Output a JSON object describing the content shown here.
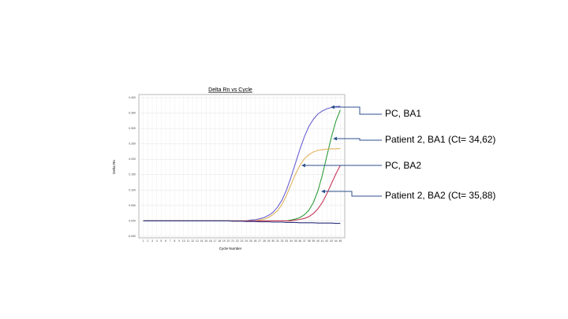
{
  "chart_data": {
    "type": "line",
    "title": "Delta Rn vs Cycle",
    "x_label": "Cycle Number",
    "y_label": "Delta Rn",
    "x": [
      1,
      2,
      3,
      4,
      5,
      6,
      7,
      8,
      9,
      10,
      11,
      12,
      13,
      14,
      15,
      16,
      17,
      18,
      19,
      20,
      21,
      22,
      23,
      24,
      25,
      26,
      27,
      28,
      29,
      30,
      31,
      32,
      33,
      34,
      35,
      36,
      37,
      38,
      39,
      40,
      41,
      42,
      43,
      44,
      45
    ],
    "xlim": [
      0,
      46
    ],
    "xticks": [
      1,
      2,
      3,
      4,
      5,
      6,
      7,
      8,
      9,
      10,
      11,
      12,
      13,
      14,
      15,
      16,
      17,
      18,
      19,
      20,
      21,
      22,
      23,
      24,
      25,
      26,
      27,
      28,
      29,
      30,
      31,
      32,
      33,
      34,
      35,
      36,
      37,
      38,
      39,
      40,
      41,
      42,
      43,
      44,
      45
    ],
    "ylim": [
      -0.05,
      0.4
    ],
    "yticks": [
      {
        "value": -0.05,
        "label": "-0.050"
      },
      {
        "value": 0,
        "label": "0.000"
      },
      {
        "value": 0.05,
        "label": "0.050"
      },
      {
        "value": 0.1,
        "label": "0.100"
      },
      {
        "value": 0.15,
        "label": "0.150"
      },
      {
        "value": 0.2,
        "label": "0.200"
      },
      {
        "value": 0.25,
        "label": "0.250"
      },
      {
        "value": 0.3,
        "label": "0.300"
      },
      {
        "value": 0.35,
        "label": "0.350"
      },
      {
        "value": 0.4,
        "label": "0.400"
      }
    ],
    "grid": true,
    "series": [
      {
        "name": "PC, BA1",
        "color": "#6a5fd0",
        "values": [
          0,
          0,
          0,
          0,
          0,
          0,
          0,
          0,
          0,
          0,
          0,
          0,
          0,
          0,
          0,
          0,
          0,
          0,
          0,
          0,
          0,
          0,
          0,
          0,
          0.003,
          0.004,
          0.007,
          0.011,
          0.018,
          0.028,
          0.045,
          0.068,
          0.101,
          0.142,
          0.188,
          0.233,
          0.274,
          0.307,
          0.33,
          0.347,
          0.357,
          0.364,
          0.368,
          0.371,
          0.372
        ]
      },
      {
        "name": "Patient 2, BA1 (Ct= 34,62)",
        "color": "#2e9e3a",
        "values": [
          0,
          0,
          0,
          0,
          0,
          0,
          0,
          0,
          0,
          0,
          0,
          0,
          0,
          0,
          0,
          0,
          0,
          0,
          0,
          0,
          0,
          0,
          0,
          0,
          0,
          0,
          0,
          0,
          0,
          0,
          0,
          0,
          0,
          0.003,
          0.006,
          0.011,
          0.02,
          0.035,
          0.06,
          0.097,
          0.149,
          0.21,
          0.271,
          0.323,
          0.36
        ]
      },
      {
        "name": "PC, BA2",
        "color": "#e0b25c",
        "values": [
          0,
          0,
          0,
          0,
          0,
          0,
          0,
          0,
          0,
          0,
          0,
          0,
          0,
          0,
          0,
          0,
          0,
          0,
          0,
          0,
          0,
          0,
          0,
          0,
          0,
          0,
          0.003,
          0.006,
          0.011,
          0.021,
          0.033,
          0.054,
          0.083,
          0.118,
          0.152,
          0.181,
          0.202,
          0.215,
          0.224,
          0.229,
          0.231,
          0.233,
          0.234,
          0.234,
          0.235
        ]
      },
      {
        "name": "Patient 2, BA2 (Ct= 35,88)",
        "color": "#c8385a",
        "values": [
          0,
          0,
          0,
          0,
          0,
          0,
          0,
          0,
          0,
          0,
          0,
          0,
          0,
          0,
          0,
          0,
          0,
          0,
          0,
          0,
          0,
          0,
          0,
          0,
          0,
          0,
          0,
          0,
          0,
          0,
          0,
          0,
          0,
          0,
          0.003,
          0.005,
          0.008,
          0.014,
          0.024,
          0.039,
          0.06,
          0.088,
          0.12,
          0.152,
          0.18
        ]
      },
      {
        "color": "#2a2f7a",
        "values": [
          0,
          0,
          0,
          0,
          0,
          0,
          0,
          0,
          0,
          0,
          0,
          0,
          0,
          0,
          0,
          0,
          0,
          0,
          0,
          0,
          -0.001,
          -0.001,
          -0.001,
          -0.002,
          -0.002,
          -0.002,
          -0.003,
          -0.003,
          -0.003,
          -0.004,
          -0.004,
          -0.004,
          -0.005,
          -0.005,
          -0.005,
          -0.006,
          -0.006,
          -0.006,
          -0.006,
          -0.007,
          -0.007,
          -0.007,
          -0.007,
          -0.008,
          -0.008
        ]
      }
    ]
  }
}
